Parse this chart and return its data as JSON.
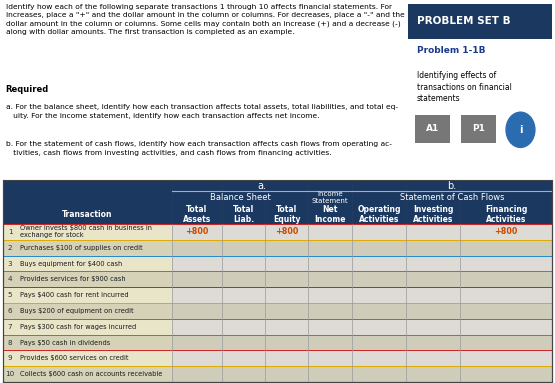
{
  "para": "Identify how each of the following separate transactions 1 through 10 affects financial statements. For\nincreases, place a \"+\" and the dollar amount in the column or columns. For decreases, place a \"-\" and the\ndollar amount in the column or columns. Some cells may contain both an increase (+) and a decrease (-)\nalong with dollar amounts. The first transaction is completed as an example.",
  "problem_set_b": "PROBLEM SET B",
  "problem_label": "Problem 1-1B",
  "problem_desc": "Identifying effects of\ntransactions on financial\nstatements",
  "badge_a": "A1",
  "badge_p": "P1",
  "required_text": "Required",
  "req_a": "a. For the balance sheet, identify how each transaction affects total assets, total liabilities, and total eq-\n   uity. For the income statement, identify how each transaction affects net income.",
  "req_b": "b. For the statement of cash flows, identify how each transaction affects cash flows from operating ac-\n   tivities, cash flows from investing activities, and cash flows from financing activities.",
  "header_a": "a.",
  "header_b": "b.",
  "header_balance_sheet": "Balance Sheet",
  "header_income_stmt": "Income\nStatement",
  "header_cash_flows": "Statement of Cash Flows",
  "col_transaction": "Transaction",
  "col_total_assets": "Total\nAssets",
  "col_total_liab": "Total\nLiab.",
  "col_total_equity": "Total\nEquity",
  "col_net_income": "Net\nIncome",
  "col_operating": "Operating\nActivities",
  "col_investing": "Investing\nActivities",
  "col_financing": "Financing\nActivities",
  "transactions": [
    {
      "num": "1",
      "desc": "Owner invests $800 cash in business in\nexchange for stock",
      "assets": "+800",
      "liab": "",
      "equity": "+800",
      "net_income": "",
      "operating": "",
      "investing": "",
      "financing": "+800"
    },
    {
      "num": "2",
      "desc": "Purchases $100 of supplies on credit",
      "assets": "",
      "liab": "",
      "equity": "",
      "net_income": "",
      "operating": "",
      "investing": "",
      "financing": ""
    },
    {
      "num": "3",
      "desc": "Buys equipment for $400 cash",
      "assets": "",
      "liab": "",
      "equity": "",
      "net_income": "",
      "operating": "",
      "investing": "",
      "financing": ""
    },
    {
      "num": "4",
      "desc": "Provides services for $900 cash",
      "assets": "",
      "liab": "",
      "equity": "",
      "net_income": "",
      "operating": "",
      "investing": "",
      "financing": ""
    },
    {
      "num": "5",
      "desc": "Pays $400 cash for rent incurred",
      "assets": "",
      "liab": "",
      "equity": "",
      "net_income": "",
      "operating": "",
      "investing": "",
      "financing": ""
    },
    {
      "num": "6",
      "desc": "Buys $200 of equipment on credit",
      "assets": "",
      "liab": "",
      "equity": "",
      "net_income": "",
      "operating": "",
      "investing": "",
      "financing": ""
    },
    {
      "num": "7",
      "desc": "Pays $300 cash for wages incurred",
      "assets": "",
      "liab": "",
      "equity": "",
      "net_income": "",
      "operating": "",
      "investing": "",
      "financing": ""
    },
    {
      "num": "8",
      "desc": "Pays $50 cash in dividends",
      "assets": "",
      "liab": "",
      "equity": "",
      "net_income": "",
      "operating": "",
      "investing": "",
      "financing": ""
    },
    {
      "num": "9",
      "desc": "Provides $600 services on credit",
      "assets": "",
      "liab": "",
      "equity": "",
      "net_income": "",
      "operating": "",
      "investing": "",
      "financing": ""
    },
    {
      "num": "10",
      "desc": "Collects $600 cash on accounts receivable",
      "assets": "",
      "liab": "",
      "equity": "",
      "net_income": "",
      "operating": "",
      "investing": "",
      "financing": ""
    }
  ],
  "bg_header_dark": "#1B3860",
  "bg_row_even": "#E8E5C8",
  "bg_row_odd": "#D5D2B8",
  "bg_cell_even": "#DEDAD5",
  "bg_cell_odd": "#CECA C4",
  "text_orange": "#C84B00",
  "text_dark": "#1a1a1a",
  "text_white": "#FFFFFF",
  "sidebar_header_bg": "#1B3860",
  "sidebar_label_color": "#1a3a8c",
  "badge_color": "#555555",
  "info_icon_color": "#2B6CB0",
  "row_line_colors": [
    "#CC2222",
    "#DDAA00",
    "#2288CC",
    "#22AA44"
  ],
  "hatch_color": "#C8C4A8"
}
